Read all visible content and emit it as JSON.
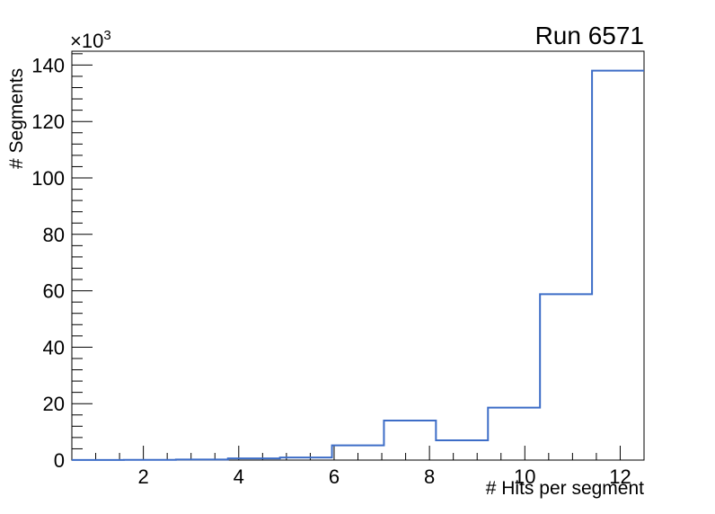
{
  "window": {
    "background_color": "#ffffff"
  },
  "colors": {
    "hist_line": "#3d6dc7",
    "axis": "#000000",
    "text": "#000000"
  },
  "title": "Run 6571",
  "chart_data": {
    "type": "bar",
    "style": "step-histogram",
    "title": "Run 6571",
    "xlabel": "# Hits per segment",
    "ylabel": "# Segments",
    "y_power_base": "×10",
    "y_power_exp": "3",
    "y_unit_multiplier": 1000,
    "xlim": [
      0.5,
      12.5
    ],
    "ylim": [
      0,
      144.9
    ],
    "grid": false,
    "legend": null,
    "x_major_ticks": [
      2,
      4,
      6,
      8,
      10,
      12
    ],
    "x_minor_step": 0.5,
    "y_major_ticks": [
      0,
      20,
      40,
      60,
      80,
      100,
      120,
      140
    ],
    "y_minor_step": 4,
    "n_bins": 11,
    "bin_edges": [
      0.5,
      1.591,
      2.682,
      3.773,
      4.864,
      5.955,
      7.045,
      8.136,
      9.227,
      10.318,
      11.409,
      12.5
    ],
    "values_thousands": [
      0.05,
      0.1,
      0.2,
      0.6,
      0.9,
      5.2,
      14.0,
      7.0,
      18.6,
      58.8,
      138.0
    ]
  }
}
